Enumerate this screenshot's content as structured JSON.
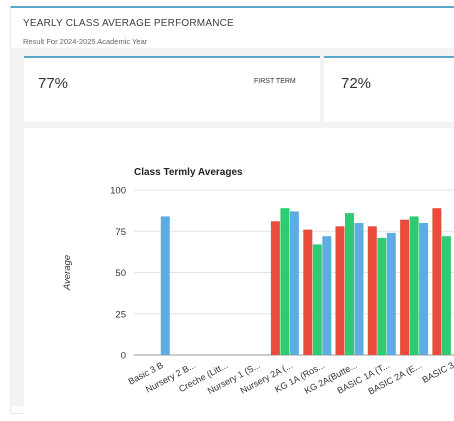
{
  "header": {
    "title": "YEARLY CLASS AVERAGE PERFORMANCE",
    "subtitle": "Result For 2024-2025 Academic Year"
  },
  "terms": [
    {
      "value": "77%",
      "label": "FIRST TERM"
    },
    {
      "value": "72%",
      "label": ""
    }
  ],
  "colors": {
    "accent": "#5aa7c7",
    "first_term": "#e74c3c",
    "second_term": "#2ecc71",
    "third_term": "#5dade2"
  },
  "chart_data": {
    "type": "bar",
    "title": "Class Termly Averages",
    "xlabel": "",
    "ylabel": "Average",
    "ylim": [
      0,
      100
    ],
    "yticks": [
      0,
      25,
      50,
      75,
      100
    ],
    "grid": true,
    "categories": [
      "Basic 3 B",
      "Nursery 2 B...",
      "Creche (Litt...",
      "Nursery 1 (S...",
      "Nursery 2A (...",
      "KG 1A (Ros...",
      "KG 2A(Butte...",
      "BASIC 1A (T...",
      "BASIC 2A (E...",
      "BASIC 3"
    ],
    "series": [
      {
        "color": "#e74c3c",
        "values": [
          null,
          null,
          null,
          null,
          81,
          76,
          78,
          78,
          82,
          89
        ]
      },
      {
        "color": "#2ecc71",
        "values": [
          null,
          null,
          null,
          null,
          89,
          67,
          86,
          71,
          84,
          72
        ]
      },
      {
        "color": "#5dade2",
        "values": [
          84,
          null,
          null,
          null,
          87,
          72,
          80,
          74,
          80,
          null
        ]
      }
    ]
  }
}
